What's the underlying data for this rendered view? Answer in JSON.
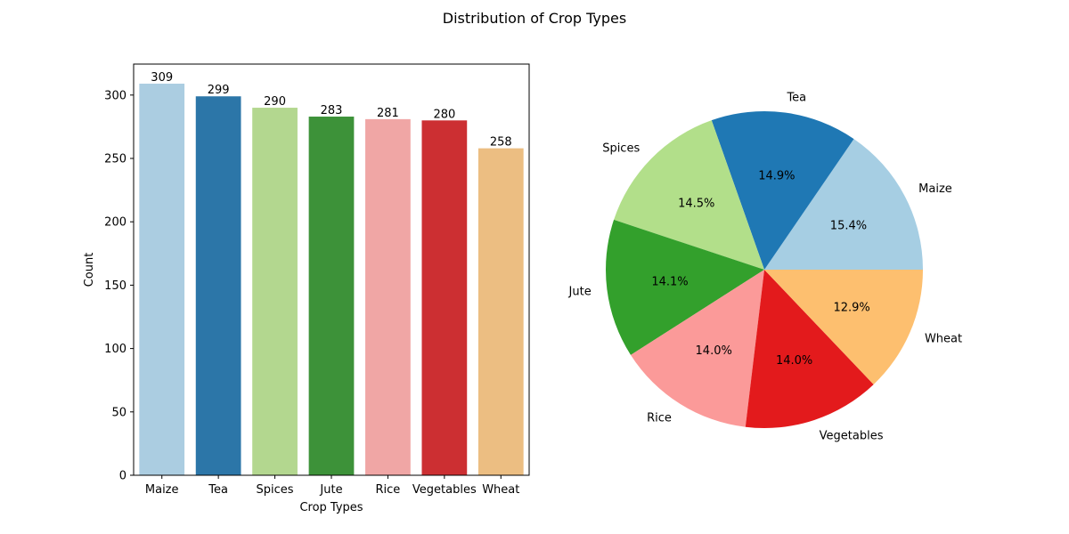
{
  "figure_title": "Distribution of Crop Types",
  "chart_data": [
    {
      "type": "bar",
      "title": "",
      "xlabel": "Crop Types",
      "ylabel": "Count",
      "categories": [
        "Maize",
        "Tea",
        "Spices",
        "Jute",
        "Rice",
        "Vegetables",
        "Wheat"
      ],
      "values": [
        309,
        299,
        290,
        283,
        281,
        280,
        258
      ],
      "data_labels": [
        "309",
        "299",
        "290",
        "283",
        "281",
        "280",
        "258"
      ],
      "colors": [
        "#abcde1",
        "#2c76a8",
        "#b3d78f",
        "#3d9239",
        "#f0a6a5",
        "#cc2f32",
        "#ecbe82"
      ],
      "ylim": [
        0,
        324.45
      ],
      "yticks": [
        0,
        50,
        100,
        150,
        200,
        250,
        300
      ],
      "grid": false
    },
    {
      "type": "pie",
      "title": "",
      "labels": [
        "Maize",
        "Tea",
        "Spices",
        "Jute",
        "Rice",
        "Vegetables",
        "Wheat"
      ],
      "values": [
        309,
        299,
        290,
        283,
        281,
        280,
        258
      ],
      "percent_labels": [
        "15.4%",
        "14.9%",
        "14.5%",
        "14.1%",
        "14.0%",
        "14.0%",
        "12.9%"
      ],
      "colors": [
        "#a6cee3",
        "#1f78b4",
        "#b2df8a",
        "#33a02c",
        "#fb9a99",
        "#e31a1c",
        "#fdbf6f"
      ],
      "start_angle": 0,
      "direction": "counterclockwise"
    }
  ]
}
